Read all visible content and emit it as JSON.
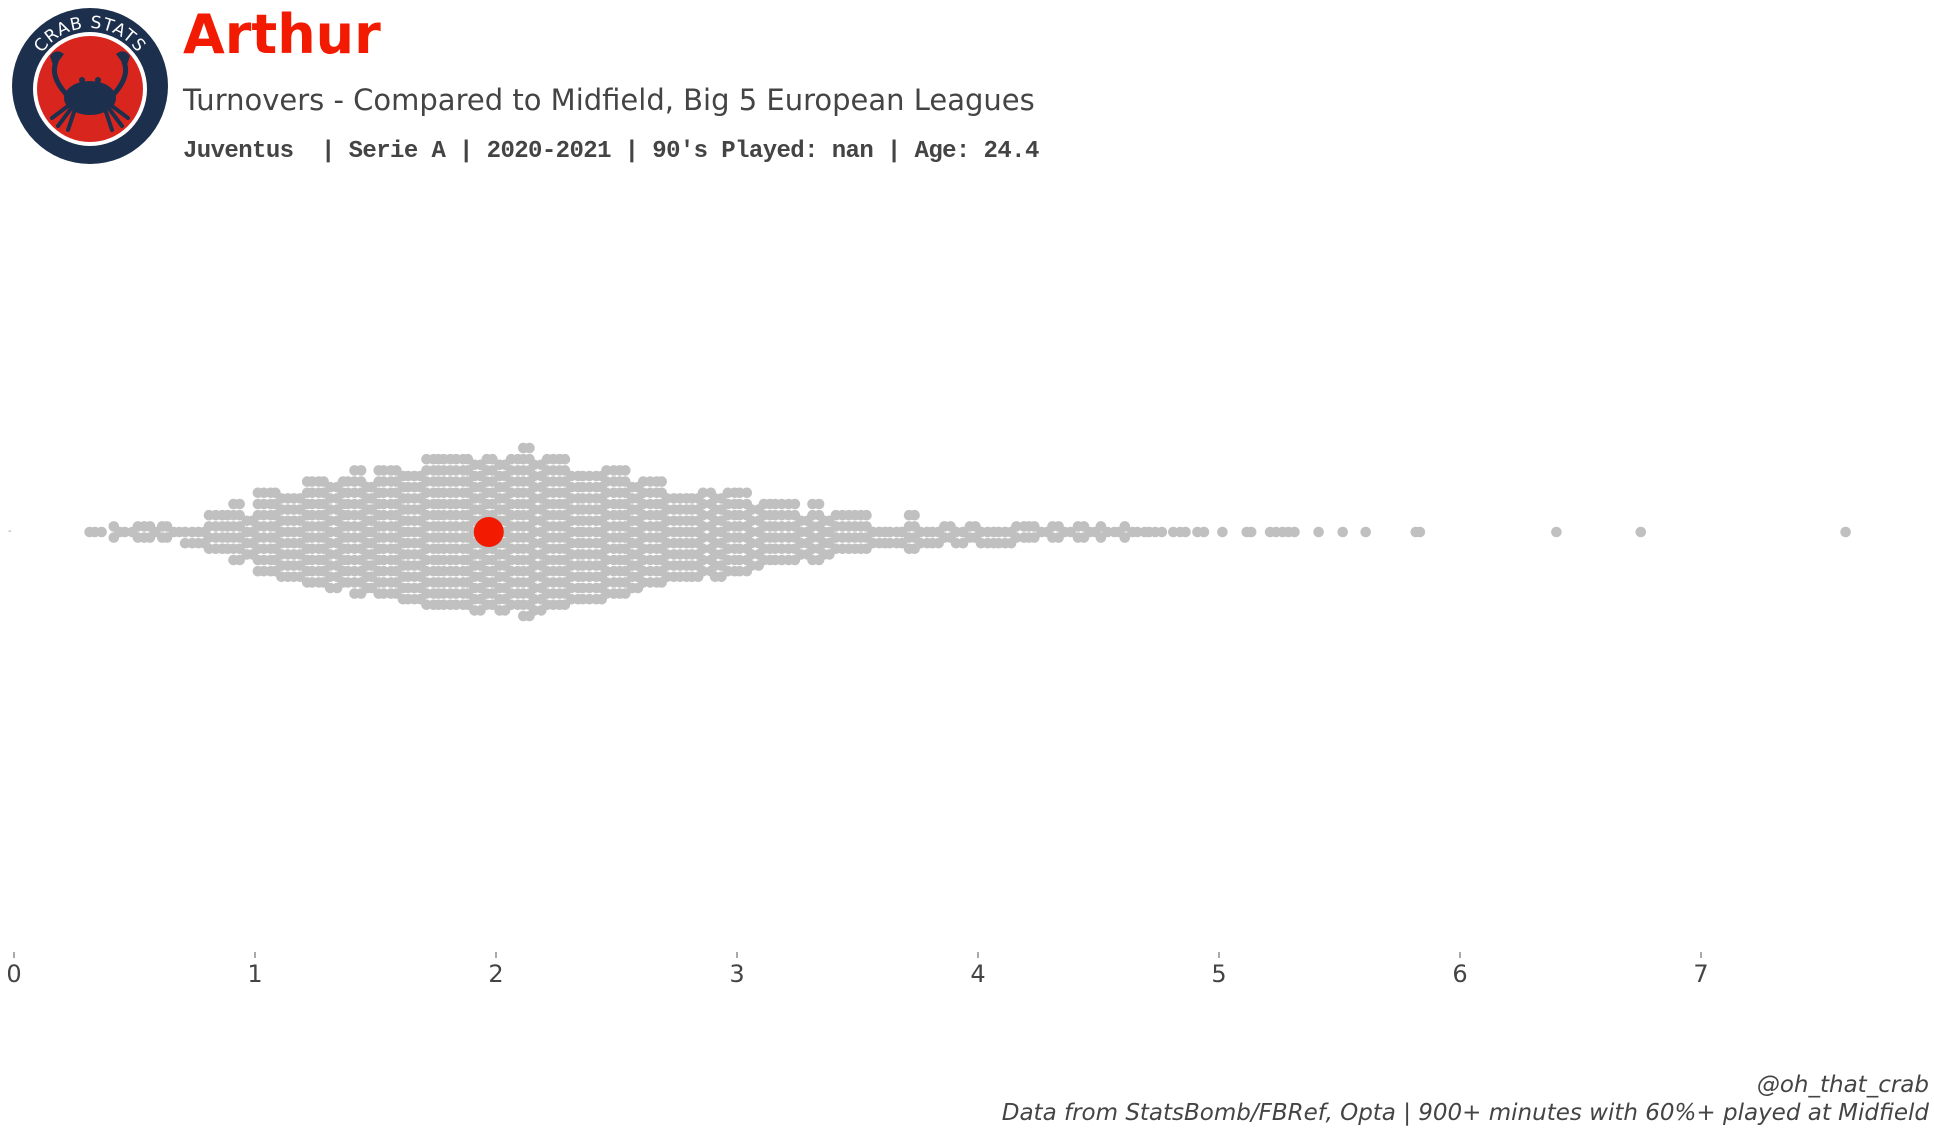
{
  "header": {
    "player_name": "Arthur",
    "subtitle": "Turnovers - Compared to Midfield, Big 5 European Leagues",
    "info": "Juventus  | Serie A | 2020-2021 | 90's Played: nan | Age: 24.4"
  },
  "logo": {
    "text": "CRAB STATS"
  },
  "footer": {
    "handle": "@oh_that_crab",
    "source": "Data from StatsBomb/FBRef, Opta | 900+ minutes with 60%+ played at Midfield"
  },
  "colors": {
    "highlight": "#f21a00",
    "points": "#c0c0c0",
    "text": "#444444",
    "logo_navy": "#1c2f4d",
    "logo_red": "#d8261f"
  },
  "chart_data": {
    "type": "scatter",
    "subtype": "beeswarm",
    "title": "Turnovers - Compared to Midfield, Big 5 European Leagues",
    "xlabel": "",
    "ylabel": "",
    "xlim": [
      0,
      7.9
    ],
    "xticks": [
      0,
      1,
      2,
      3,
      4,
      5,
      6,
      7
    ],
    "xtick_labels": [
      "0",
      "1",
      "2",
      "3",
      "4",
      "5",
      "6",
      "7"
    ],
    "grid": false,
    "highlight": {
      "label": "Arthur",
      "value": 1.97
    },
    "distribution_note": "Approximate count of midfield players per 0.1-wide turnover bin, read from the column heights of the swarm",
    "distribution": [
      {
        "x": 0.35,
        "count": 3
      },
      {
        "x": 0.45,
        "count": 5
      },
      {
        "x": 0.55,
        "count": 7
      },
      {
        "x": 0.65,
        "count": 6
      },
      {
        "x": 0.75,
        "count": 12
      },
      {
        "x": 0.85,
        "count": 16
      },
      {
        "x": 0.95,
        "count": 22
      },
      {
        "x": 1.05,
        "count": 32
      },
      {
        "x": 1.15,
        "count": 36
      },
      {
        "x": 1.25,
        "count": 40
      },
      {
        "x": 1.35,
        "count": 42
      },
      {
        "x": 1.45,
        "count": 46
      },
      {
        "x": 1.55,
        "count": 48
      },
      {
        "x": 1.65,
        "count": 52
      },
      {
        "x": 1.75,
        "count": 56
      },
      {
        "x": 1.85,
        "count": 56
      },
      {
        "x": 1.95,
        "count": 58
      },
      {
        "x": 2.05,
        "count": 58
      },
      {
        "x": 2.15,
        "count": 62
      },
      {
        "x": 2.25,
        "count": 56
      },
      {
        "x": 2.35,
        "count": 52
      },
      {
        "x": 2.45,
        "count": 50
      },
      {
        "x": 2.55,
        "count": 46
      },
      {
        "x": 2.65,
        "count": 40
      },
      {
        "x": 2.75,
        "count": 36
      },
      {
        "x": 2.85,
        "count": 34
      },
      {
        "x": 2.95,
        "count": 34
      },
      {
        "x": 3.05,
        "count": 30
      },
      {
        "x": 3.15,
        "count": 24
      },
      {
        "x": 3.25,
        "count": 22
      },
      {
        "x": 3.35,
        "count": 22
      },
      {
        "x": 3.45,
        "count": 16
      },
      {
        "x": 3.55,
        "count": 14
      },
      {
        "x": 3.65,
        "count": 12
      },
      {
        "x": 3.75,
        "count": 14
      },
      {
        "x": 3.85,
        "count": 10
      },
      {
        "x": 3.95,
        "count": 10
      },
      {
        "x": 4.05,
        "count": 12
      },
      {
        "x": 4.15,
        "count": 10
      },
      {
        "x": 4.25,
        "count": 6
      },
      {
        "x": 4.35,
        "count": 6
      },
      {
        "x": 4.45,
        "count": 6
      },
      {
        "x": 4.55,
        "count": 5
      },
      {
        "x": 4.65,
        "count": 5
      },
      {
        "x": 4.75,
        "count": 3
      },
      {
        "x": 4.85,
        "count": 3
      },
      {
        "x": 4.95,
        "count": 2
      },
      {
        "x": 5.05,
        "count": 1
      },
      {
        "x": 5.15,
        "count": 2
      },
      {
        "x": 5.25,
        "count": 4
      },
      {
        "x": 5.35,
        "count": 1
      },
      {
        "x": 5.45,
        "count": 1
      },
      {
        "x": 5.55,
        "count": 1
      },
      {
        "x": 5.65,
        "count": 1
      },
      {
        "x": 5.85,
        "count": 2
      }
    ],
    "outliers": [
      6.4,
      6.75,
      7.6
    ]
  }
}
